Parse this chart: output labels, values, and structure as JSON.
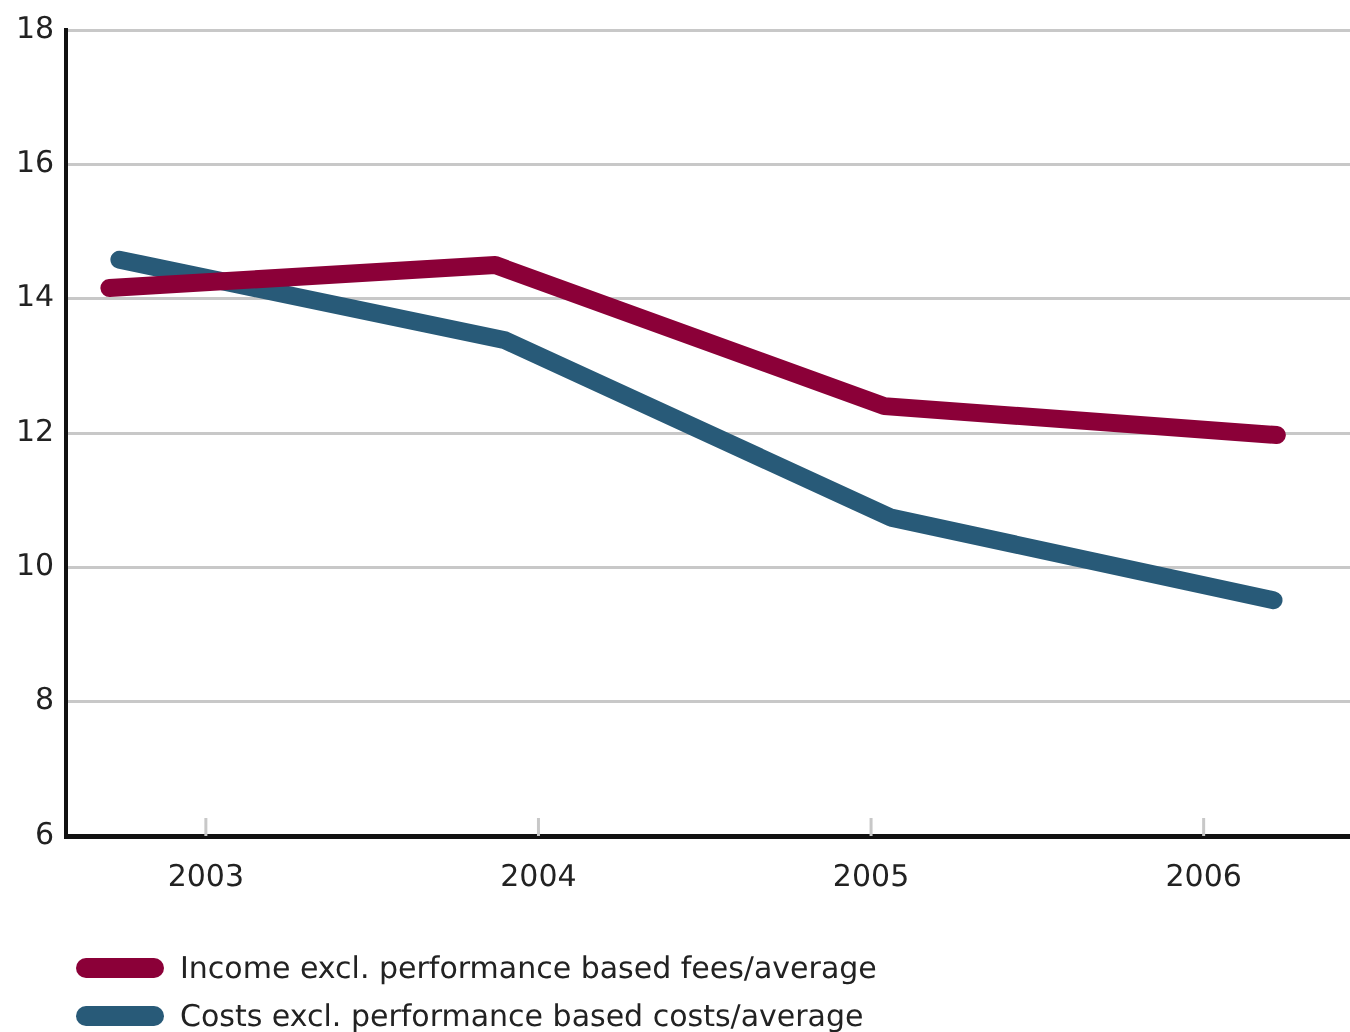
{
  "chart_data": {
    "type": "line",
    "xlim": [
      2002.58,
      2006.44
    ],
    "xticks": [
      2003,
      2004,
      2005,
      2006
    ],
    "ylim": [
      6,
      18
    ],
    "yticks": [
      6,
      8,
      10,
      12,
      14,
      16,
      18
    ],
    "grid": "y",
    "legend": "bottom left",
    "marker": "none",
    "line_style": "solid",
    "series": [
      {
        "name": "Income excl. performance based fees/average",
        "color": "#8b0038",
        "x": [
          2002.71,
          2003.87,
          2005.04,
          2006.22
        ],
        "values": [
          14.16,
          14.5,
          12.4,
          11.97
        ]
      },
      {
        "name": "Costs excl. performance based costs/average",
        "color": "#285a78",
        "x": [
          2002.74,
          2003.9,
          2005.06,
          2006.21
        ],
        "values": [
          14.58,
          13.38,
          10.74,
          9.51
        ]
      }
    ]
  }
}
